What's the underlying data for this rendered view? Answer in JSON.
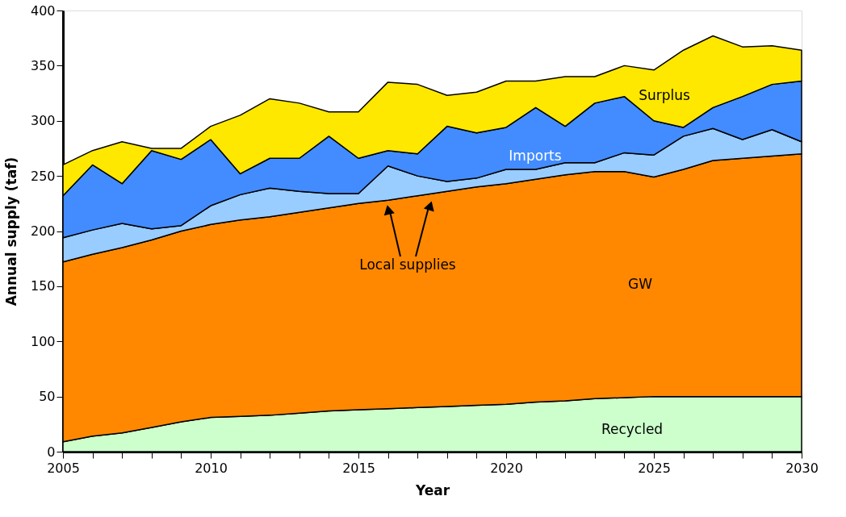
{
  "chart_data": {
    "type": "area",
    "stacked": true,
    "xlabel": "Year",
    "ylabel": "Annual supply (taf)",
    "x": [
      2005,
      2006,
      2007,
      2008,
      2009,
      2010,
      2011,
      2012,
      2013,
      2014,
      2015,
      2016,
      2017,
      2018,
      2019,
      2020,
      2021,
      2022,
      2023,
      2024,
      2025,
      2026,
      2027,
      2028,
      2029,
      2030
    ],
    "series": [
      {
        "name": "Recycled",
        "color": "#ccffcc",
        "values": [
          9,
          14,
          17,
          22,
          27,
          31,
          32,
          33,
          35,
          37,
          38,
          39,
          40,
          41,
          42,
          43,
          45,
          46,
          48,
          49,
          50,
          50,
          50,
          50,
          50,
          50
        ]
      },
      {
        "name": "GW",
        "color": "#ff8800",
        "values": [
          163,
          165,
          168,
          170,
          173,
          175,
          178,
          180,
          182,
          184,
          187,
          189,
          192,
          195,
          198,
          200,
          202,
          205,
          206,
          205,
          199,
          206,
          214,
          216,
          218,
          220
        ]
      },
      {
        "color": "#99ccff",
        "values": [
          22,
          22,
          22,
          10,
          5,
          17,
          23,
          26,
          19,
          13,
          9,
          31,
          18,
          9,
          8,
          13,
          9,
          11,
          8,
          17,
          20,
          30,
          29,
          17,
          24,
          11
        ]
      },
      {
        "name": "Imports",
        "color": "#428cff",
        "values": [
          38,
          59,
          36,
          71,
          60,
          60,
          19,
          27,
          30,
          52,
          32,
          14,
          20,
          50,
          41,
          38,
          56,
          33,
          54,
          51,
          31,
          8,
          19,
          39,
          41,
          55
        ]
      },
      {
        "name": "Surplus",
        "color": "#ffe800",
        "values": [
          28,
          13,
          38,
          2,
          10,
          12,
          53,
          54,
          50,
          22,
          42,
          62,
          63,
          28,
          37,
          42,
          24,
          45,
          24,
          28,
          46,
          70,
          65,
          45,
          35,
          28
        ]
      }
    ],
    "xlim": [
      2005,
      2030
    ],
    "xticks": [
      2005,
      {
        "value": 2006,
        "label": null
      },
      {
        "value": 2007,
        "label": null
      },
      {
        "value": 2008,
        "label": null
      },
      {
        "value": 2009,
        "label": null
      },
      2010,
      {
        "value": 2011,
        "label": null
      },
      {
        "value": 2012,
        "label": null
      },
      {
        "value": 2013,
        "label": null
      },
      {
        "value": 2014,
        "label": null
      },
      2015,
      {
        "value": 2016,
        "label": null
      },
      {
        "value": 2017,
        "label": null
      },
      {
        "value": 2018,
        "label": null
      },
      {
        "value": 2019,
        "label": null
      },
      2020,
      {
        "value": 2021,
        "label": null
      },
      {
        "value": 2022,
        "label": null
      },
      {
        "value": 2023,
        "label": null
      },
      {
        "value": 2024,
        "label": null
      },
      2025,
      {
        "value": 2026,
        "label": null
      },
      {
        "value": 2027,
        "label": null
      },
      {
        "value": 2028,
        "label": null
      },
      {
        "value": 2029,
        "label": null
      },
      2030
    ],
    "ylim": [
      0,
      400
    ],
    "yticks": [
      0,
      50,
      100,
      150,
      200,
      250,
      300,
      350,
      400
    ],
    "annotations": [
      "Local supplies"
    ],
    "grid": false,
    "legend": false
  }
}
